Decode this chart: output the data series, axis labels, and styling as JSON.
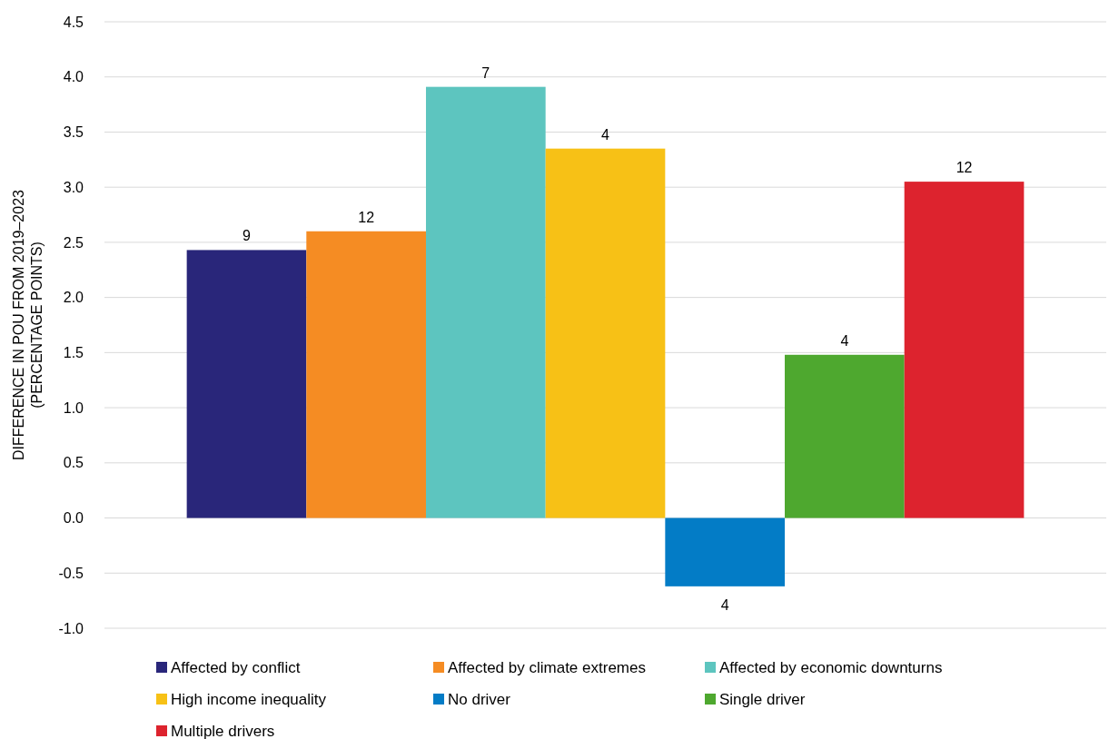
{
  "chart_data": {
    "type": "bar",
    "ylabel": "DIFFERENCE IN POU FROM 2019–2023\n(PERCENTAGE POINTS)",
    "categories": [
      null
    ],
    "series": [
      {
        "name": "Affected by conflict",
        "color": "#29267a",
        "values": [
          2.43
        ]
      },
      {
        "name": "Affected by climate extremes",
        "color": "#f58c23",
        "values": [
          2.6
        ]
      },
      {
        "name": "Affected by economic downturns",
        "color": "#5dc5bf",
        "values": [
          3.91
        ]
      },
      {
        "name": "High income inequality",
        "color": "#f7c116",
        "values": [
          3.35
        ]
      },
      {
        "name": "No driver",
        "color": "#037cc6",
        "values": [
          -0.62
        ]
      },
      {
        "name": "Single driver",
        "color": "#4ea82f",
        "values": [
          1.48
        ]
      },
      {
        "name": "Multiple drivers",
        "color": "#dd232e",
        "values": [
          3.05
        ]
      }
    ],
    "annotations": [
      {
        "text": "9",
        "y": 2.43
      },
      {
        "text": "12",
        "y": 2.6
      },
      {
        "text": "7",
        "y": 3.91
      },
      {
        "text": "4",
        "y": 3.35
      },
      {
        "text": "4",
        "y": -0.62
      },
      {
        "text": "4",
        "y": 1.48
      },
      {
        "text": "12",
        "y": 3.05
      }
    ],
    "ylim": [
      -1.0,
      4.5
    ],
    "yticks": [
      {
        "value": -1,
        "label": "-1.0"
      },
      {
        "value": -0.5,
        "label": "-0.5"
      },
      {
        "value": 0,
        "label": "0.0"
      },
      {
        "value": 0.5,
        "label": "0.5"
      },
      {
        "value": 1,
        "label": "1.0"
      },
      {
        "value": 1.5,
        "label": "1.5"
      },
      {
        "value": 2,
        "label": "2.0"
      },
      {
        "value": 2.5,
        "label": "2.5"
      },
      {
        "value": 3,
        "label": "3.0"
      },
      {
        "value": 3.5,
        "label": "3.5"
      },
      {
        "value": 4,
        "label": "4.0"
      },
      {
        "value": 4.5,
        "label": "4.5"
      }
    ],
    "grid": "y",
    "legend": "bottom"
  }
}
